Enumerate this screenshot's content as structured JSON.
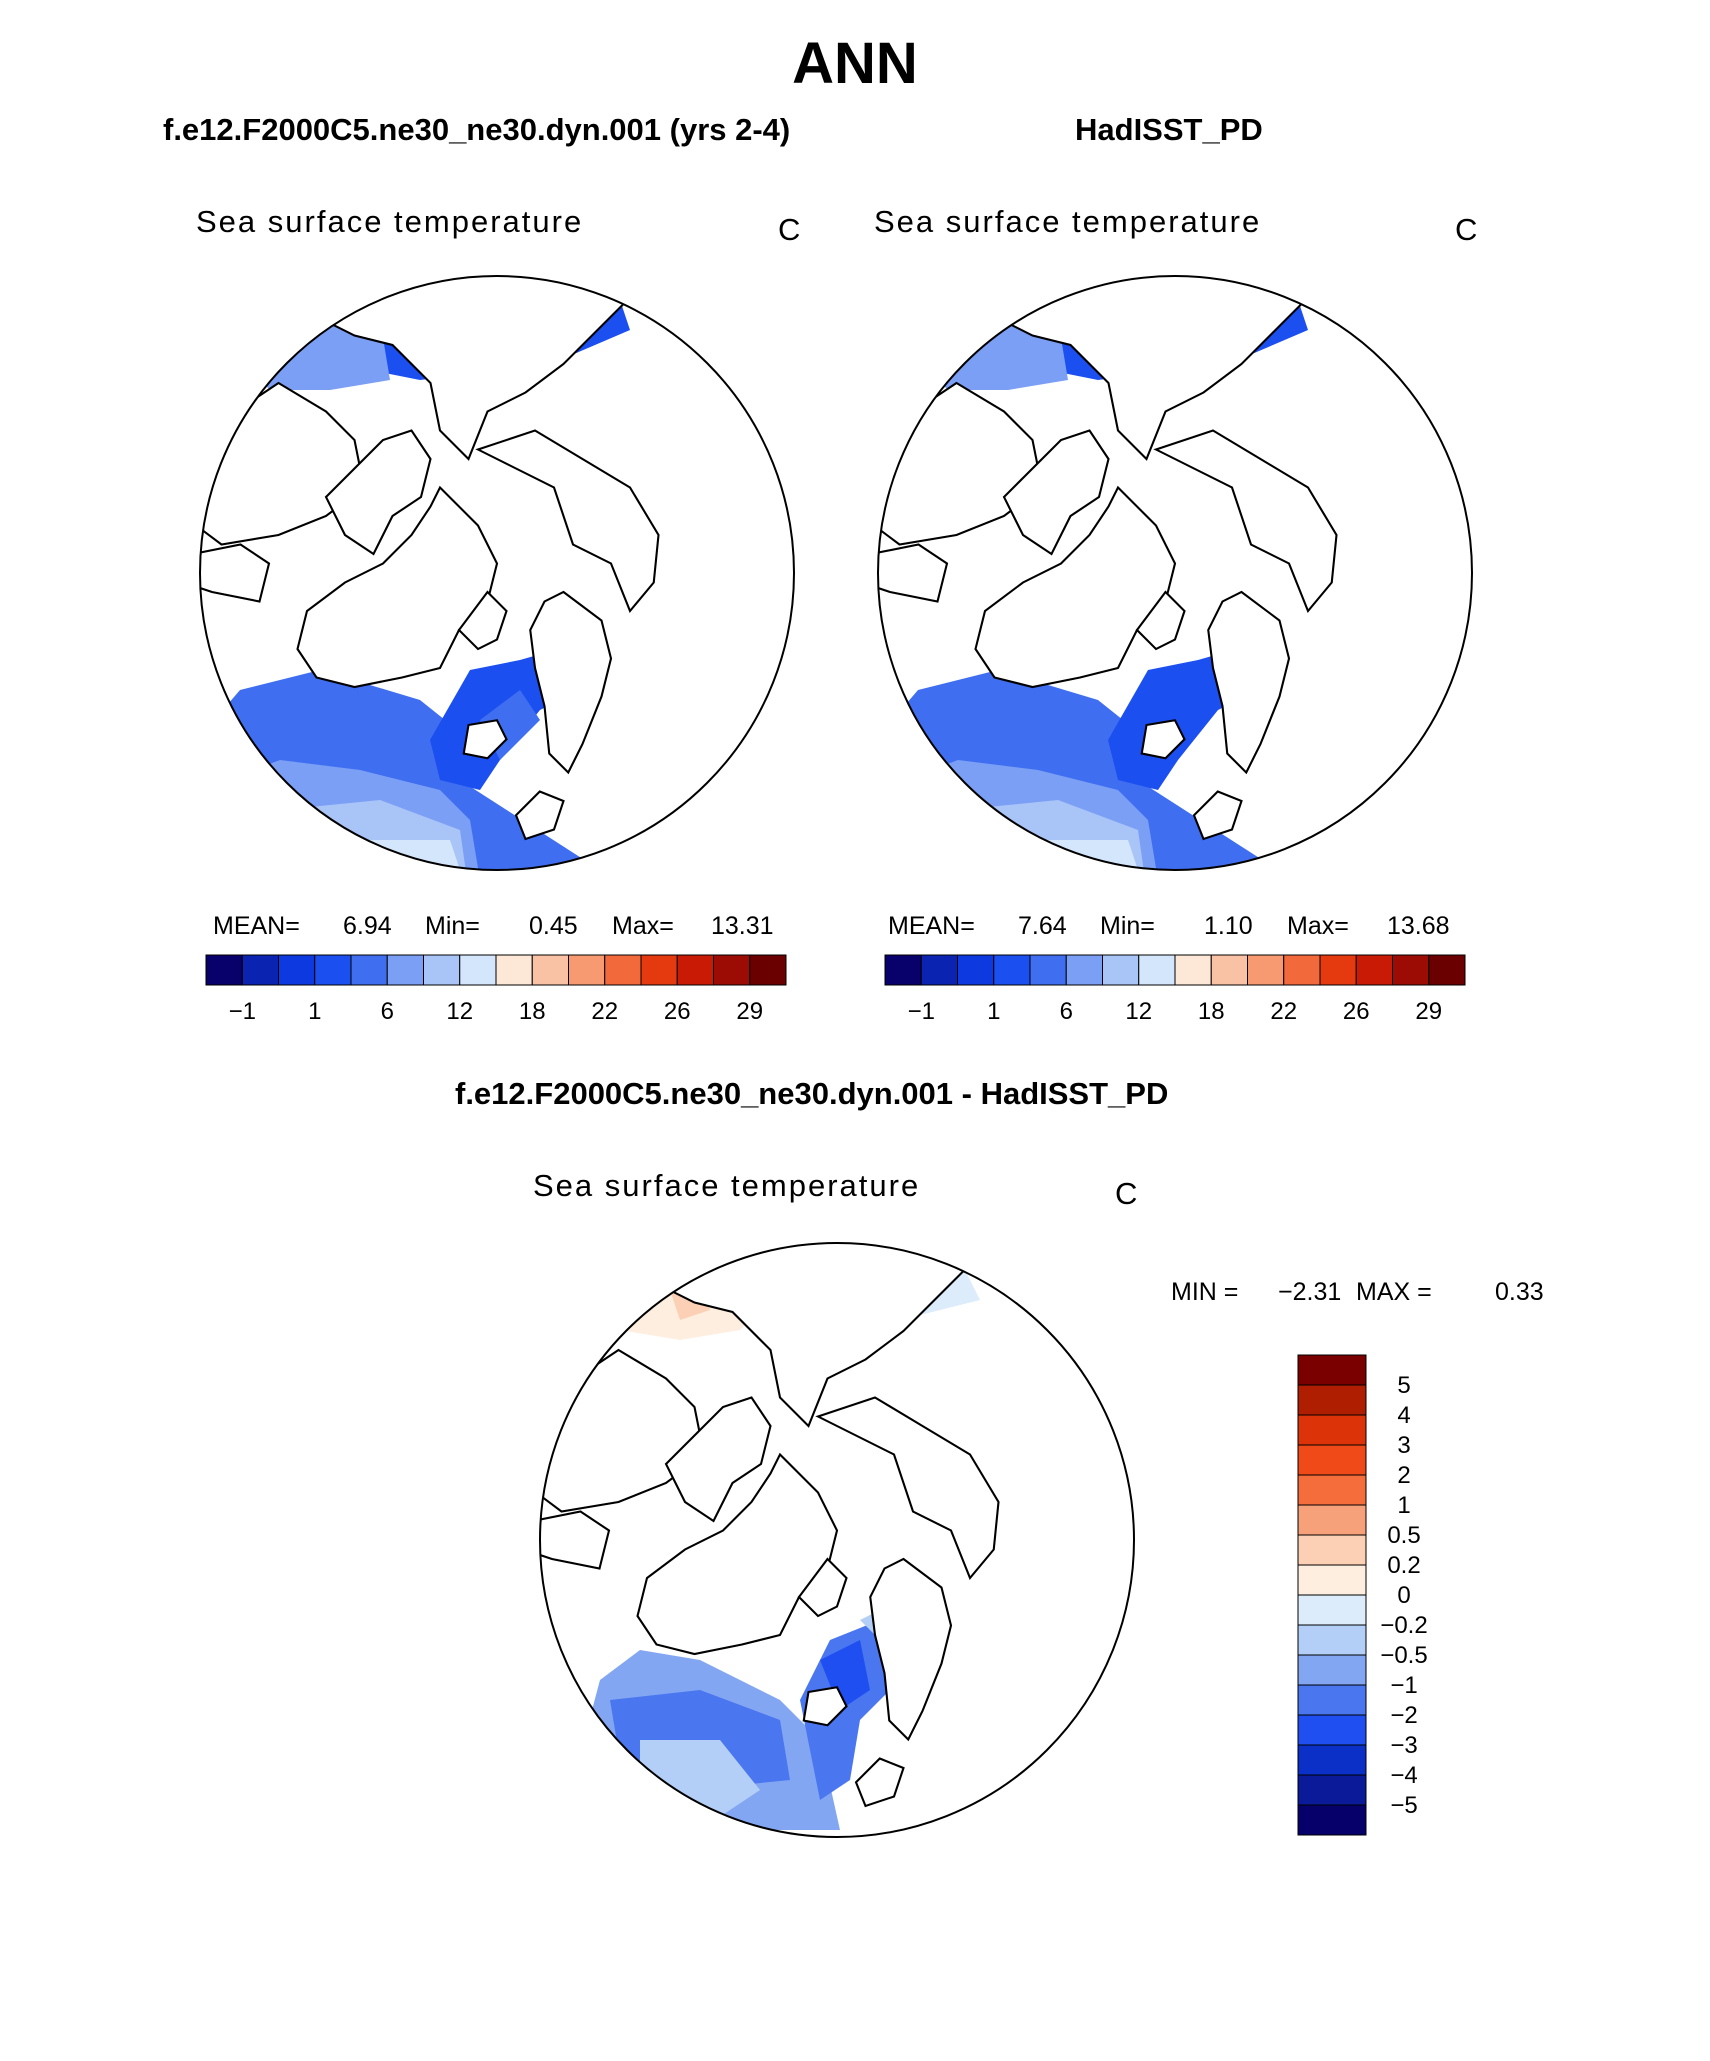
{
  "figure": {
    "title": "ANN",
    "case_title": "f.e12.F2000C5.ne30_ne30.dyn.001 (yrs 2-4)",
    "obs_title": "HadISST_PD",
    "diff_title": "f.e12.F2000C5.ne30_ne30.dyn.001 - HadISST_PD"
  },
  "chart_data": [
    {
      "type": "heatmap",
      "projection": "north-polar-stereographic",
      "panel": "model",
      "label": "Sea surface temperature",
      "units": "C",
      "stats": {
        "mean_label": "MEAN=",
        "mean": "6.94",
        "min_label": "Min=",
        "min": "0.45",
        "max_label": "Max=",
        "max": "13.31"
      },
      "colorbar": {
        "orientation": "horizontal",
        "levels": [
          -1,
          1,
          3,
          6,
          9,
          12,
          15,
          18,
          20,
          22,
          24,
          26,
          28,
          29
        ],
        "tick_labels": [
          "−1",
          "1",
          "6",
          "12",
          "18",
          "22",
          "26",
          "29"
        ],
        "colors": [
          "#08006b",
          "#0a23b0",
          "#0d3ae0",
          "#1c4ff0",
          "#3f6ff0",
          "#7b9ff5",
          "#a9c4f7",
          "#d3e6fb",
          "#fde7d6",
          "#f9c2a4",
          "#f79a72",
          "#f26a3b",
          "#e53910",
          "#c91a05",
          "#9c0c04",
          "#6b0000"
        ]
      }
    },
    {
      "type": "heatmap",
      "projection": "north-polar-stereographic",
      "panel": "obs",
      "label": "Sea surface temperature",
      "units": "C",
      "stats": {
        "mean_label": "MEAN=",
        "mean": "7.64",
        "min_label": "Min=",
        "min": "1.10",
        "max_label": "Max=",
        "max": "13.68"
      },
      "colorbar": {
        "orientation": "horizontal",
        "levels": [
          -1,
          1,
          3,
          6,
          9,
          12,
          15,
          18,
          20,
          22,
          24,
          26,
          28,
          29
        ],
        "tick_labels": [
          "−1",
          "1",
          "6",
          "12",
          "18",
          "22",
          "26",
          "29"
        ],
        "colors": [
          "#08006b",
          "#0a23b0",
          "#0d3ae0",
          "#1c4ff0",
          "#3f6ff0",
          "#7b9ff5",
          "#a9c4f7",
          "#d3e6fb",
          "#fde7d6",
          "#f9c2a4",
          "#f79a72",
          "#f26a3b",
          "#e53910",
          "#c91a05",
          "#9c0c04",
          "#6b0000"
        ]
      }
    },
    {
      "type": "heatmap",
      "projection": "north-polar-stereographic",
      "panel": "difference",
      "label": "Sea surface temperature",
      "units": "C",
      "stats": {
        "min_label": "MIN =",
        "min": "−2.31",
        "max_label": "MAX =",
        "max": "0.33"
      },
      "colorbar": {
        "orientation": "vertical",
        "levels": [
          5,
          4,
          3,
          2,
          1,
          0.5,
          0.2,
          0,
          -0.2,
          -0.5,
          -1,
          -2,
          -3,
          -4,
          -5
        ],
        "tick_labels": [
          "5",
          "4",
          "3",
          "2",
          "1",
          "0.5",
          "0.2",
          "0",
          "−0.2",
          "−0.5",
          "−1",
          "−2",
          "−3",
          "−4",
          "−5"
        ],
        "colors": [
          "#7a0000",
          "#b01e02",
          "#dd3308",
          "#f04a18",
          "#f56d3b",
          "#f7a17a",
          "#fbd0b5",
          "#fdeedf",
          "#dcecfb",
          "#b4cff7",
          "#83a6f3",
          "#4a76ef",
          "#1f4ff0",
          "#0a30c8",
          "#0a1a98",
          "#06006b"
        ]
      }
    }
  ]
}
